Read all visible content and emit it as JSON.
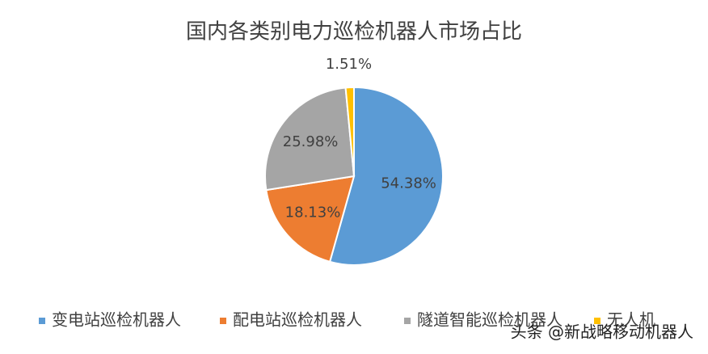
{
  "chart_data": {
    "type": "pie",
    "title": "国内各类别电力巡检机器人市场占比",
    "categories": [
      "变电站巡检机器人",
      "配电站巡检机器人",
      "隧道智能巡检机器人",
      "无人机"
    ],
    "values": [
      54.38,
      18.13,
      25.98,
      1.51
    ],
    "value_labels": [
      "54.38%",
      "18.13%",
      "25.98%",
      "1.51%"
    ],
    "colors": [
      "#5b9bd5",
      "#ed7d31",
      "#a5a5a5",
      "#ffc000"
    ],
    "legend": "bottom"
  },
  "watermark": "头条 @新战略移动机器人"
}
